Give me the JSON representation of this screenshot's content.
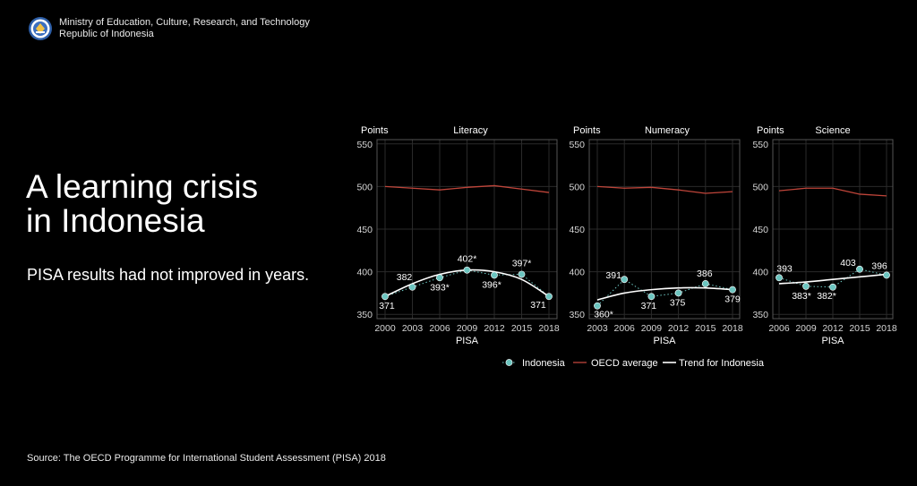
{
  "header": {
    "org_line1": "Ministry of Education, Culture, Research, and Technology",
    "org_line2": "Republic of Indonesia"
  },
  "headline": {
    "line1": "A learning crisis",
    "line2": "in Indonesia"
  },
  "subtitle": "PISA results had not improved in years.",
  "source": "Source: The OECD Programme for International Student Assessment (PISA) 2018",
  "colors": {
    "background": "#000000",
    "indonesia": "#6cc5c0",
    "oecd": "#c0453a",
    "trend": "#ffffff",
    "panel_border": "#555555",
    "grid": "#2a2a2a"
  },
  "legend": {
    "indonesia": "Indonesia",
    "oecd": "OECD average",
    "trend": "Trend for Indonesia"
  },
  "chart_data": [
    {
      "type": "line",
      "title": "Literacy",
      "ylabel": "Points",
      "xlabel": "PISA",
      "ylim": [
        345,
        555
      ],
      "yticks": [
        350,
        400,
        450,
        500,
        550
      ],
      "xticks": [
        2000,
        2003,
        2006,
        2009,
        2012,
        2015,
        2018
      ],
      "x": [
        2000,
        2003,
        2006,
        2009,
        2012,
        2015,
        2018
      ],
      "series": [
        {
          "name": "Indonesia",
          "values": [
            371,
            382,
            393,
            402,
            396,
            397,
            371
          ],
          "labels": [
            "371",
            "382",
            "393*",
            "402*",
            "396*",
            "397*",
            "371"
          ]
        },
        {
          "name": "OECD average",
          "values": [
            500,
            498,
            496,
            499,
            501,
            497,
            493
          ]
        },
        {
          "name": "Trend for Indonesia",
          "values": [
            371,
            386,
            397,
            402,
            400,
            391,
            371
          ]
        }
      ],
      "grid": true
    },
    {
      "type": "line",
      "title": "Numeracy",
      "ylabel": "Points",
      "xlabel": "PISA",
      "ylim": [
        345,
        555
      ],
      "yticks": [
        350,
        400,
        450,
        500,
        550
      ],
      "xticks": [
        2003,
        2006,
        2009,
        2012,
        2015,
        2018
      ],
      "x": [
        2003,
        2006,
        2009,
        2012,
        2015,
        2018
      ],
      "series": [
        {
          "name": "Indonesia",
          "values": [
            360,
            391,
            371,
            375,
            386,
            379
          ],
          "labels": [
            "360*",
            "391",
            "371",
            "375",
            "386",
            "379"
          ]
        },
        {
          "name": "OECD average",
          "values": [
            500,
            498,
            499,
            496,
            492,
            494
          ]
        },
        {
          "name": "Trend for Indonesia",
          "values": [
            367,
            375,
            379,
            381,
            381,
            379
          ]
        }
      ],
      "grid": true
    },
    {
      "type": "line",
      "title": "Science",
      "ylabel": "Points",
      "xlabel": "PISA",
      "ylim": [
        345,
        555
      ],
      "yticks": [
        350,
        400,
        450,
        500,
        550
      ],
      "xticks": [
        2006,
        2009,
        2012,
        2015,
        2018
      ],
      "x": [
        2006,
        2009,
        2012,
        2015,
        2018
      ],
      "series": [
        {
          "name": "Indonesia",
          "values": [
            393,
            383,
            382,
            403,
            396
          ],
          "labels": [
            "393",
            "383*",
            "382*",
            "403",
            "396"
          ]
        },
        {
          "name": "OECD average",
          "values": [
            495,
            498,
            498,
            491,
            489
          ]
        },
        {
          "name": "Trend for Indonesia",
          "values": [
            386,
            388,
            391,
            394,
            397
          ]
        }
      ],
      "grid": true
    }
  ]
}
